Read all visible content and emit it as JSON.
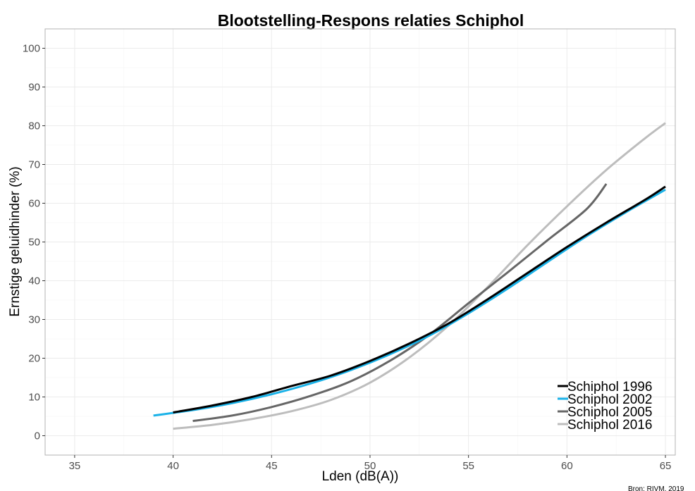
{
  "chart_data": {
    "type": "line",
    "title": "Blootstelling-Respons relaties Schiphol",
    "xlabel": "Lden (dB(A))",
    "ylabel": "Ernstige geluidhinder (%)",
    "xlim": [
      33.5,
      65.5
    ],
    "ylim": [
      -5,
      105
    ],
    "x_ticks": [
      35,
      40,
      45,
      50,
      55,
      60,
      65
    ],
    "y_ticks": [
      0,
      10,
      20,
      30,
      40,
      50,
      60,
      70,
      80,
      90,
      100
    ],
    "grid": true,
    "legend_position": "bottom-right",
    "source": "Bron: RIVM, 2019",
    "series": [
      {
        "name": "Schiphol 1996",
        "color": "#000000",
        "points": [
          [
            40,
            6.0
          ],
          [
            42,
            7.8
          ],
          [
            44,
            10.0
          ],
          [
            46,
            12.8
          ],
          [
            48,
            15.5
          ],
          [
            50,
            19.3
          ],
          [
            52,
            23.8
          ],
          [
            54,
            29.0
          ],
          [
            56,
            35.3
          ],
          [
            58,
            42.0
          ],
          [
            60,
            48.7
          ],
          [
            62,
            55.0
          ],
          [
            64,
            61.0
          ],
          [
            65,
            64.3
          ]
        ]
      },
      {
        "name": "Schiphol 2002",
        "color": "#1ab2e8",
        "points": [
          [
            39,
            5.2
          ],
          [
            41,
            6.6
          ],
          [
            43,
            8.4
          ],
          [
            45,
            10.7
          ],
          [
            47,
            13.5
          ],
          [
            49,
            16.9
          ],
          [
            51,
            21.0
          ],
          [
            53,
            25.8
          ],
          [
            55,
            31.6
          ],
          [
            57,
            38.0
          ],
          [
            59,
            44.8
          ],
          [
            61,
            51.5
          ],
          [
            63,
            57.7
          ],
          [
            65,
            63.5
          ]
        ]
      },
      {
        "name": "Schiphol 2005",
        "color": "#666666",
        "points": [
          [
            41,
            3.8
          ],
          [
            43,
            5.2
          ],
          [
            45,
            7.4
          ],
          [
            47,
            10.3
          ],
          [
            49,
            14.0
          ],
          [
            51,
            19.3
          ],
          [
            53,
            26.0
          ],
          [
            55,
            34.2
          ],
          [
            57,
            42.2
          ],
          [
            59,
            50.4
          ],
          [
            61,
            58.5
          ],
          [
            62,
            65.0
          ]
        ]
      },
      {
        "name": "Schiphol 2016",
        "color": "#bdbdbd",
        "points": [
          [
            40,
            1.8
          ],
          [
            42,
            2.8
          ],
          [
            44,
            4.3
          ],
          [
            46,
            6.3
          ],
          [
            48,
            9.2
          ],
          [
            50,
            13.7
          ],
          [
            52,
            20.2
          ],
          [
            54,
            28.5
          ],
          [
            56,
            38.5
          ],
          [
            58,
            49.2
          ],
          [
            60,
            59.2
          ],
          [
            62,
            68.6
          ],
          [
            64,
            76.9
          ],
          [
            65,
            80.7
          ]
        ]
      }
    ]
  }
}
